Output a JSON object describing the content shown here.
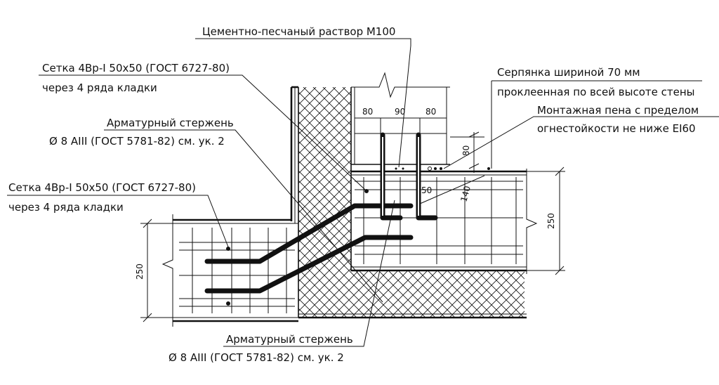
{
  "labels": {
    "mortar": "Цементно-песчаный раствор М100",
    "mesh_top_line1": "Сетка 4Вр-I 50х50 (ГОСТ 6727-80)",
    "mesh_top_line2": "через 4 ряда кладки",
    "rebar_top_line1": "Арматурный стержень",
    "rebar_top_line2": "Ø 8 АIII (ГОСТ 5781-82) см. ук. 2",
    "mesh_left_line1": "Сетка 4Вр-I 50х50 (ГОСТ 6727-80)",
    "mesh_left_line2": "через 4 ряда кладки",
    "serpyanka_line1": "Серпянка шириной 70 мм",
    "serpyanka_line2": "проклеенная по всей высоте стены",
    "foam_line1": "Монтажная пена с пределом",
    "foam_line2": "огнестойкости не ниже EI60",
    "rebar_bottom_line1": "Арматурный стержень",
    "rebar_bottom_line2": "Ø 8 АIII (ГОСТ 5781-82) см. ук. 2"
  },
  "dimensions": {
    "d80a": "80",
    "d90": "90",
    "d80b": "80",
    "d80v": "80",
    "d50": "50",
    "d140": "140",
    "d250_right": "250",
    "d250_left": "250"
  }
}
